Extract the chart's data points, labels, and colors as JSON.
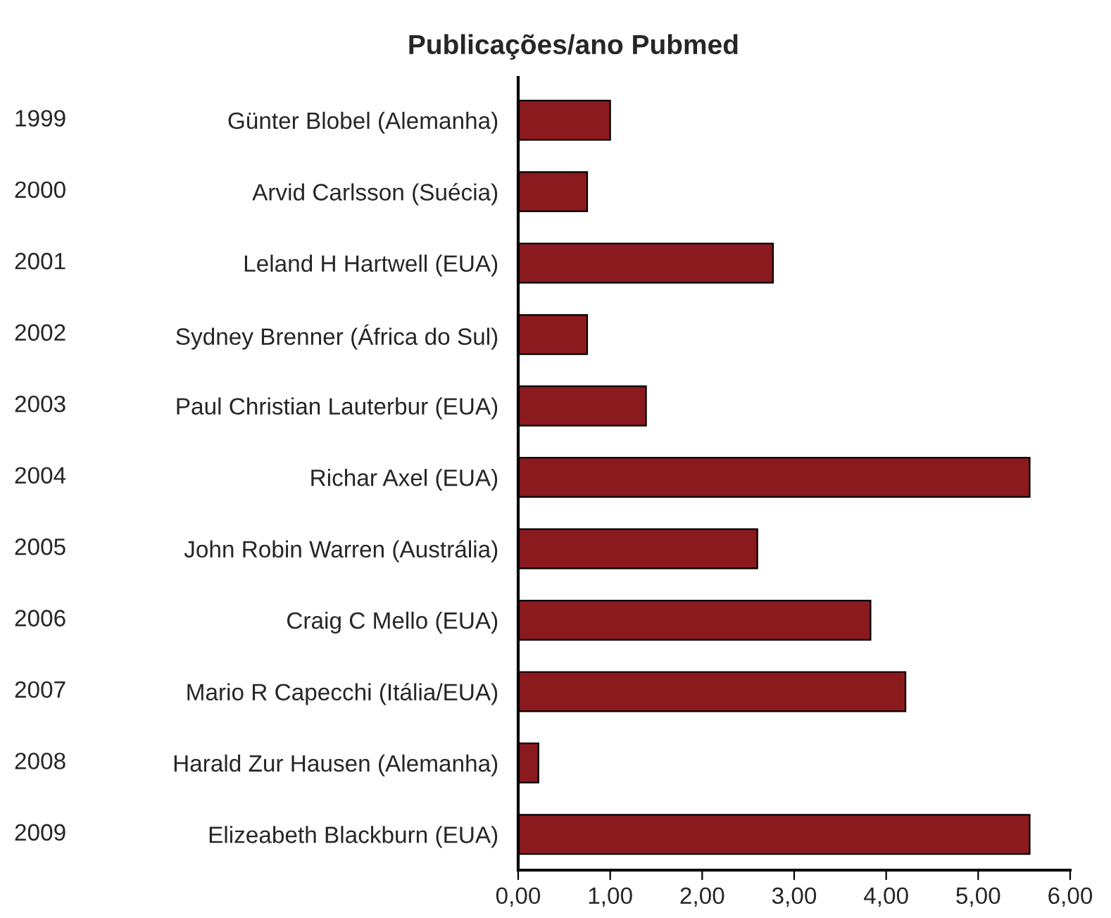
{
  "chart_data": {
    "type": "bar",
    "orientation": "horizontal",
    "title": "Publicações/ano Pubmed",
    "categories": [
      "Günter Blobel (Alemanha)",
      "Arvid Carlsson (Suécia)",
      "Leland H Hartwell (EUA)",
      "Sydney Brenner (África do Sul)",
      "Paul Christian Lauterbur (EUA)",
      "Richar Axel (EUA)",
      "John Robin Warren (Austrália)",
      "Craig C Mello (EUA)",
      "Mario R Capecchi (Itália/EUA)",
      "Harald Zur Hausen (Alemanha)",
      "Elizeabeth Blackburn (EUA)"
    ],
    "values": [
      1.0,
      0.75,
      2.77,
      0.75,
      1.39,
      5.56,
      2.6,
      3.83,
      4.21,
      0.22,
      5.56
    ],
    "color": "#8b1a1f",
    "annotations": [
      "1999",
      "2000",
      "2001",
      "2002",
      "2003",
      "2004",
      "2005",
      "2006",
      "2007",
      "2008",
      "2009"
    ],
    "xlim": [
      0,
      6
    ],
    "xticks": [
      {
        "value": 0,
        "label": "0,00"
      },
      {
        "value": 1,
        "label": "1,00"
      },
      {
        "value": 2,
        "label": "2,00"
      },
      {
        "value": 3,
        "label": "3,00"
      },
      {
        "value": 4,
        "label": "4,00"
      },
      {
        "value": 5,
        "label": "5,00"
      },
      {
        "value": 6,
        "label": "6,00"
      }
    ],
    "grid": false,
    "legend": false
  }
}
